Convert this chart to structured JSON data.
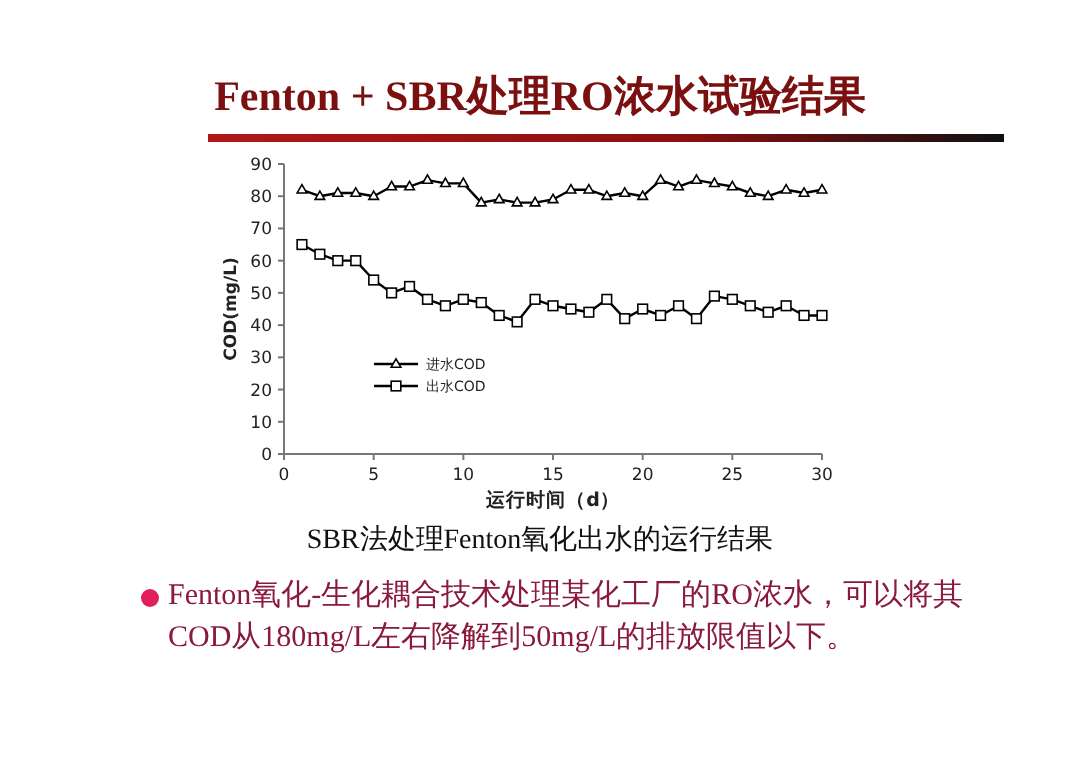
{
  "chart_data": {
    "type": "line",
    "title": "Fenton + SBR处理RO浓水试验结果",
    "xlabel": "运行时间（d）",
    "ylabel": "COD(mg/L)",
    "x": [
      1,
      2,
      3,
      4,
      5,
      6,
      7,
      8,
      9,
      10,
      11,
      12,
      13,
      14,
      15,
      16,
      17,
      18,
      19,
      20,
      21,
      22,
      23,
      24,
      25,
      26,
      27,
      28,
      29,
      30
    ],
    "series": [
      {
        "name": "进水COD",
        "color": "#000000",
        "marker": "triangle",
        "values": [
          82,
          80,
          81,
          81,
          80,
          83,
          83,
          85,
          84,
          84,
          78,
          79,
          78,
          78,
          79,
          82,
          82,
          80,
          81,
          80,
          85,
          83,
          85,
          84,
          83,
          81,
          80,
          82,
          81,
          82
        ]
      },
      {
        "name": "出水COD",
        "color": "#000000",
        "marker": "square",
        "values": [
          65,
          62,
          60,
          60,
          54,
          50,
          52,
          48,
          46,
          48,
          47,
          43,
          41,
          48,
          46,
          45,
          44,
          48,
          42,
          45,
          43,
          46,
          42,
          49,
          48,
          46,
          44,
          46,
          43,
          43
        ]
      }
    ],
    "xlim": [
      0,
      30
    ],
    "ylim": [
      0,
      90
    ],
    "xticks": [
      0,
      5,
      10,
      15,
      20,
      25,
      30
    ],
    "yticks": [
      0,
      10,
      20,
      30,
      40,
      50,
      60,
      70,
      80,
      90
    ],
    "grid": false,
    "legend": "bottom left",
    "line_style": "solid",
    "annotations": [
      "SBR法处理Fenton氧化出水的运行结果",
      "Fenton氧化-生化耦合技术处理某化工厂的RO浓水，可以将其COD从180mg/L左右降解到50mg/L的排放限值以下。"
    ]
  }
}
